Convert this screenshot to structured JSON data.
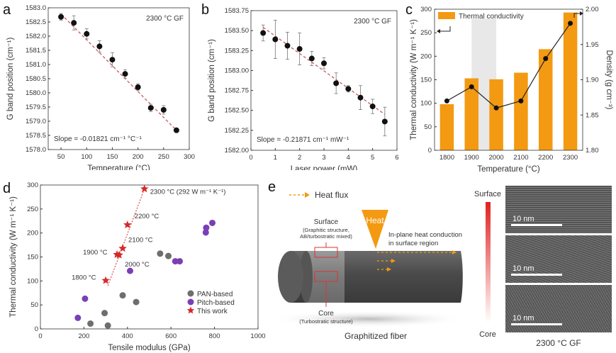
{
  "chart_data": [
    {
      "panel": "a",
      "type": "scatter",
      "annotation": "2300 °C GF",
      "fit_label": "Slope = -0.01821 cm⁻¹ °C⁻¹",
      "xlabel": "Temperature (°C)",
      "ylabel": "G band position (cm⁻¹)",
      "xlim": [
        25,
        300
      ],
      "ylim": [
        1578.0,
        1583.0
      ],
      "xticks": [
        50,
        100,
        150,
        200,
        250,
        300
      ],
      "yticks": [
        "1578.0",
        "1578.5",
        "1579.0",
        "1579.5",
        "1580.0",
        "1580.5",
        "1581.0",
        "1581.5",
        "1582.0",
        "1582.5",
        "1583.0"
      ],
      "x": [
        50,
        75,
        100,
        125,
        150,
        175,
        200,
        225,
        250,
        275
      ],
      "y": [
        1582.68,
        1582.47,
        1582.08,
        1581.64,
        1581.17,
        1580.67,
        1580.2,
        1579.47,
        1579.4,
        1578.68
      ],
      "err": [
        0.12,
        0.25,
        0.18,
        0.2,
        0.25,
        0.15,
        0.12,
        0.13,
        0.15,
        0.05
      ],
      "fit": {
        "x": [
          50,
          275
        ],
        "y": [
          1582.78,
          1578.68
        ]
      }
    },
    {
      "panel": "b",
      "type": "scatter",
      "annotation": "2300 °C GF",
      "fit_label": "Slope = -0.21871 cm⁻¹ mW⁻¹",
      "xlabel": "Laser power (mW)",
      "ylabel": "G band position (cm⁻¹)",
      "xlim": [
        0,
        6
      ],
      "ylim": [
        1582.0,
        1583.75
      ],
      "xticks": [
        0,
        1,
        2,
        3,
        4,
        5,
        6
      ],
      "yticks": [
        "1582.00",
        "1582.25",
        "1582.50",
        "1582.75",
        "1583.00",
        "1583.25",
        "1583.50",
        "1583.75"
      ],
      "x": [
        0.5,
        1.0,
        1.5,
        2.0,
        2.5,
        3.0,
        3.5,
        4.0,
        4.5,
        5.0,
        5.5
      ],
      "y": [
        1583.47,
        1583.39,
        1583.31,
        1583.27,
        1583.15,
        1583.09,
        1582.84,
        1582.77,
        1582.66,
        1582.55,
        1582.36
      ],
      "err": [
        0.1,
        0.24,
        0.17,
        0.2,
        0.09,
        0.07,
        0.13,
        0.04,
        0.15,
        0.09,
        0.18
      ],
      "fit": {
        "x": [
          0.5,
          5.5
        ],
        "y": [
          1583.54,
          1582.45
        ]
      }
    },
    {
      "panel": "c",
      "type": "bar",
      "legend": "Thermal conductivity",
      "xlabel": "Temperature (°C)",
      "ylabel": "Thermal conductivity (W m⁻¹ K⁻¹)",
      "y2label": "Density (g cm⁻³)",
      "categories": [
        "1800",
        "1900",
        "2000",
        "2100",
        "2200",
        "2300"
      ],
      "ylim": [
        0,
        300
      ],
      "y2lim": [
        1.8,
        2.0
      ],
      "yticks": [
        "0",
        "50",
        "100",
        "150",
        "200",
        "250",
        "300"
      ],
      "y2ticks": [
        "1.80",
        "1.85",
        "1.90",
        "1.95",
        "2.00"
      ],
      "highlight_between": [
        "1900",
        "2000"
      ],
      "series": [
        {
          "name": "Thermal conductivity",
          "axis": "left",
          "values": [
            98,
            153,
            151,
            165,
            215,
            293
          ]
        },
        {
          "name": "Density",
          "axis": "right",
          "values": [
            1.87,
            1.89,
            1.86,
            1.87,
            1.93,
            1.98
          ]
        }
      ]
    },
    {
      "panel": "d",
      "type": "scatter",
      "xlabel": "Tensile modulus (GPa)",
      "ylabel": "Thermal conductivity (W m⁻¹ K⁻¹)",
      "xlim": [
        0,
        1000
      ],
      "ylim": [
        0,
        300
      ],
      "xticks": [
        0,
        200,
        400,
        600,
        800,
        1000
      ],
      "yticks": [
        0,
        50,
        100,
        150,
        200,
        250,
        300
      ],
      "series": [
        {
          "name": "PAN-based",
          "color": "#6e6e6e",
          "points": [
            [
              230,
              11
            ],
            [
              295,
              33
            ],
            [
              310,
              7
            ],
            [
              378,
              70
            ],
            [
              440,
              56
            ],
            [
              550,
              157
            ],
            [
              588,
              152
            ]
          ]
        },
        {
          "name": "Pitch-based",
          "color": "#7b3fb5",
          "points": [
            [
              172,
              23
            ],
            [
              205,
              63
            ],
            [
              412,
              121
            ],
            [
              620,
              141
            ],
            [
              640,
              141
            ],
            [
              760,
              201
            ],
            [
              762,
              211
            ],
            [
              790,
              221
            ]
          ]
        },
        {
          "name": "This work",
          "color": "#d42a2a",
          "points": [
            [
              300,
              101
            ],
            [
              352,
              155
            ],
            [
              362,
              154
            ],
            [
              378,
              168
            ],
            [
              400,
              217
            ],
            [
              478,
              292
            ]
          ],
          "labels": [
            "1800 °C",
            "1900 °C",
            "2000 °C",
            "2100 °C",
            "2200 °C",
            "2300 °C (292 W m⁻¹ K⁻¹)"
          ]
        }
      ]
    }
  ],
  "schematic": {
    "panel": "e",
    "legend": "Heat flux",
    "heat": "Heat",
    "surface_title": "Surface",
    "surface_desc1": "(Graphitic structure,",
    "surface_desc2": "AB/turbostratic mixed)",
    "core_title": "Core",
    "core_desc": "(Turbostratic structure)",
    "conduction1": "In-plane heat conduction",
    "conduction2": "in surface region",
    "caption": "Graphitized fiber"
  },
  "tem": {
    "top_label": "Surface",
    "bottom_label": "Core",
    "scale_labels": [
      "10 nm",
      "10 nm",
      "10 nm"
    ],
    "caption": "2300 °C GF"
  },
  "colors": {
    "orange": "#f39a12",
    "fit": "#c85a5a",
    "gradient_top": "#e02020"
  }
}
